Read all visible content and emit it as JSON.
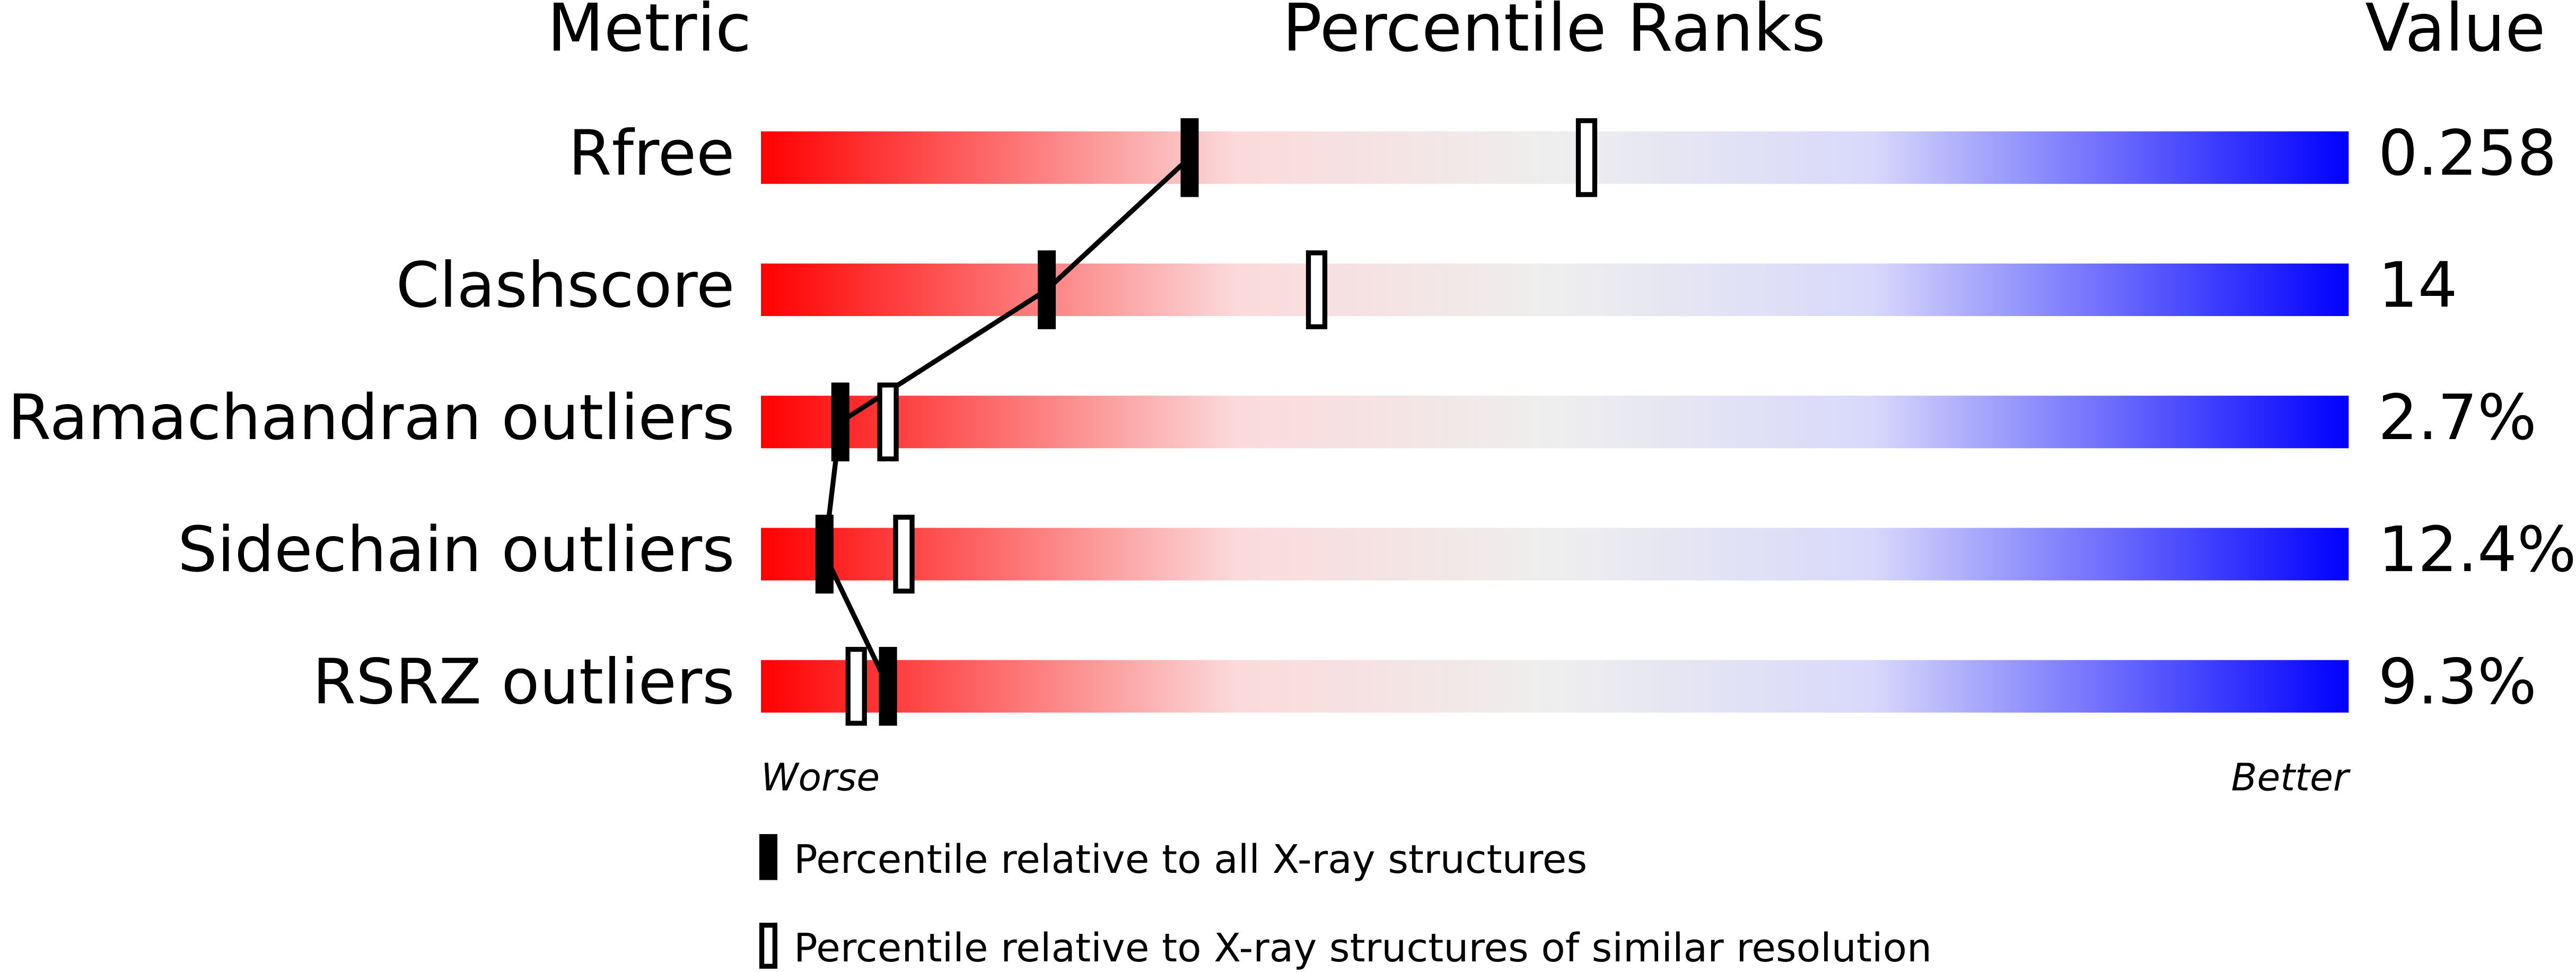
{
  "chart_data": {
    "type": "percentile",
    "column_headers": [
      "Metric",
      "Percentile Ranks",
      "Value"
    ],
    "categories": [
      "Rfree",
      "Clashscore",
      "Ramachandran outliers",
      "Sidechain outliers",
      "RSRZ outliers"
    ],
    "metric_values": [
      "0.258",
      "14",
      "2.7%",
      "12.4%",
      "9.3%"
    ],
    "series": [
      {
        "name": "Percentile relative to all X-ray structures",
        "style": "filled",
        "color": "#000000",
        "values": [
          27,
          18,
          5,
          4,
          8
        ]
      },
      {
        "name": "Percentile relative to X-ray structures of similar resolution",
        "style": "open",
        "color": "#000000",
        "values": [
          52,
          35,
          8,
          9,
          6
        ]
      }
    ],
    "xlim": [
      0,
      100
    ],
    "x_end_labels": [
      "Worse",
      "Better"
    ]
  }
}
